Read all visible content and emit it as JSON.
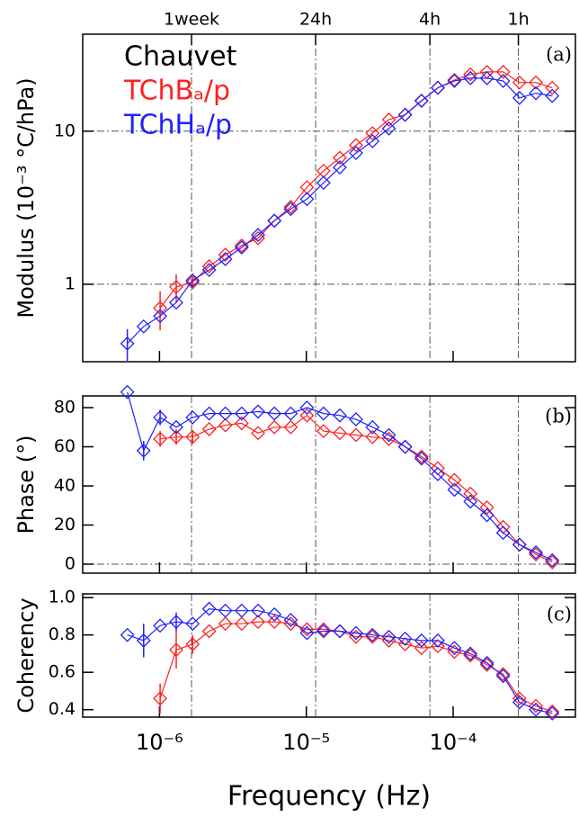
{
  "chart_data": [
    {
      "type": "line",
      "xlog": true,
      "ylog": true,
      "grid": true,
      "ylabel": "Modulus (10⁻³ °C/hPa)",
      "annotation": "(a)",
      "legend_title": "Chauvet",
      "legend": "upper left",
      "xlim": [
        3e-07,
        0.00068
      ],
      "ylim": [
        0.312,
        43
      ],
      "x2ticks": [
        {
          "value": 1.653e-06,
          "label": "1week"
        },
        {
          "value": 1.157e-05,
          "label": "24h"
        },
        {
          "value": 6.94e-05,
          "label": "4h"
        },
        {
          "value": 0.000278,
          "label": "1h"
        }
      ],
      "yticks": [
        1,
        10
      ],
      "ygrid": [
        1,
        10
      ],
      "x": [
        6.04e-07,
        7.8e-07,
        1.01e-06,
        1.3e-06,
        1.68e-06,
        2.18e-06,
        2.81e-06,
        3.63e-06,
        4.69e-06,
        6.06e-06,
        7.83e-06,
        1.01e-05,
        1.31e-05,
        1.69e-05,
        2.18e-05,
        2.82e-05,
        3.65e-05,
        4.71e-05,
        6.09e-05,
        7.86e-05,
        0.000102,
        0.000131,
        0.00017,
        0.000219,
        0.000283,
        0.000366,
        0.000473
      ],
      "series": [
        {
          "name": "TChBₐ/p",
          "color": "#ff2020",
          "values": [
            null,
            null,
            0.7,
            0.96,
            1.03,
            1.31,
            1.56,
            1.79,
            2.0,
            2.6,
            3.2,
            4.3,
            5.5,
            6.7,
            8.1,
            9.7,
            11.9,
            12.8,
            15.8,
            19.2,
            21.6,
            23.5,
            24.4,
            24.4,
            20.8,
            20.8,
            19.2
          ],
          "errors": [
            null,
            null,
            0.2,
            0.2,
            0.08,
            null,
            null,
            null,
            null,
            null,
            null,
            null,
            null,
            null,
            null,
            null,
            null,
            null,
            null,
            null,
            null,
            null,
            null,
            null,
            null,
            null,
            null
          ]
        },
        {
          "name": "TChHₐ/p",
          "color": "#2020ff",
          "values": [
            0.41,
            0.53,
            0.62,
            0.76,
            1.06,
            1.24,
            1.46,
            1.74,
            2.1,
            2.6,
            3.1,
            3.6,
            4.6,
            5.8,
            7.2,
            8.6,
            10.4,
            12.8,
            15.8,
            19.2,
            21.3,
            22.2,
            22.2,
            21.3,
            16.5,
            17.7,
            17.0
          ],
          "errors": [
            0.1,
            null,
            null,
            null,
            null,
            null,
            null,
            null,
            null,
            null,
            null,
            null,
            null,
            null,
            null,
            null,
            null,
            null,
            null,
            null,
            null,
            null,
            null,
            null,
            null,
            null,
            null
          ]
        }
      ]
    },
    {
      "type": "line",
      "xlog": true,
      "grid": true,
      "ylabel": "Phase (°)",
      "annotation": "(b)",
      "xlim": [
        3e-07,
        0.00068
      ],
      "ylim": [
        -4.6,
        86
      ],
      "yticks": [
        0,
        20,
        40,
        60,
        80
      ],
      "ygrid": [
        0
      ],
      "x": [
        6.04e-07,
        7.8e-07,
        1.01e-06,
        1.3e-06,
        1.68e-06,
        2.18e-06,
        2.81e-06,
        3.63e-06,
        4.69e-06,
        6.06e-06,
        7.83e-06,
        1.01e-05,
        1.31e-05,
        1.69e-05,
        2.18e-05,
        2.82e-05,
        3.65e-05,
        4.71e-05,
        6.09e-05,
        7.86e-05,
        0.000102,
        0.000131,
        0.00017,
        0.000219,
        0.000283,
        0.000366,
        0.000473
      ],
      "series": [
        {
          "color": "#ff2020",
          "values": [
            null,
            null,
            64,
            65,
            65,
            69,
            71,
            72,
            67,
            70,
            70,
            76,
            68,
            67,
            66,
            65,
            64,
            60,
            55,
            49,
            43,
            36,
            29,
            19,
            10,
            5,
            1
          ],
          "errors": [
            null,
            null,
            4,
            4,
            3,
            null,
            null,
            null,
            null,
            null,
            null,
            null,
            null,
            null,
            null,
            null,
            null,
            null,
            null,
            null,
            null,
            null,
            null,
            null,
            null,
            null,
            null
          ]
        },
        {
          "color": "#2020ff",
          "values": [
            88,
            58,
            75,
            70,
            75,
            77,
            77,
            77,
            78,
            77,
            77,
            80,
            77,
            76,
            74,
            70,
            66,
            60,
            54,
            46,
            38,
            32,
            25,
            16,
            10,
            6,
            2
          ],
          "errors": [
            null,
            5,
            4,
            null,
            null,
            null,
            null,
            null,
            null,
            null,
            null,
            null,
            null,
            null,
            null,
            null,
            null,
            null,
            null,
            null,
            null,
            null,
            null,
            null,
            null,
            null,
            null
          ]
        }
      ]
    },
    {
      "type": "line",
      "xlog": true,
      "grid": true,
      "ylabel": "Coherency",
      "annotation": "(c)",
      "xlabel": "Frequency (Hz)",
      "xlim": [
        3e-07,
        0.00068
      ],
      "ylim": [
        0.36,
        1.02
      ],
      "xticks": [
        {
          "value": 1e-06,
          "label": "10⁻⁶"
        },
        {
          "value": 1e-05,
          "label": "10⁻⁵"
        },
        {
          "value": 0.0001,
          "label": "10⁻⁴"
        }
      ],
      "yticks": [
        0.4,
        0.6,
        0.8,
        {
          "value": 1.0,
          "label": "1.0"
        }
      ],
      "x": [
        6.04e-07,
        7.8e-07,
        1.01e-06,
        1.3e-06,
        1.68e-06,
        2.18e-06,
        2.81e-06,
        3.63e-06,
        4.69e-06,
        6.06e-06,
        7.83e-06,
        1.01e-05,
        1.31e-05,
        1.69e-05,
        2.18e-05,
        2.82e-05,
        3.65e-05,
        4.71e-05,
        6.09e-05,
        7.86e-05,
        0.000102,
        0.000131,
        0.00017,
        0.000219,
        0.000283,
        0.000366,
        0.000473
      ],
      "series": [
        {
          "color": "#ff2020",
          "values": [
            null,
            null,
            0.46,
            0.72,
            0.75,
            0.82,
            0.86,
            0.86,
            0.87,
            0.87,
            0.86,
            0.83,
            0.83,
            0.82,
            0.79,
            0.79,
            0.77,
            0.75,
            0.73,
            0.74,
            0.71,
            0.69,
            0.64,
            0.59,
            0.46,
            0.42,
            0.39
          ],
          "errors": [
            null,
            null,
            0.08,
            0.1,
            0.05,
            null,
            null,
            null,
            null,
            null,
            null,
            null,
            null,
            null,
            null,
            null,
            null,
            null,
            null,
            null,
            null,
            null,
            null,
            null,
            null,
            null,
            null
          ]
        },
        {
          "color": "#2020ff",
          "values": [
            0.8,
            0.77,
            0.85,
            0.87,
            0.86,
            0.94,
            0.93,
            0.93,
            0.93,
            0.91,
            0.88,
            0.81,
            0.82,
            0.82,
            0.81,
            0.8,
            0.79,
            0.78,
            0.77,
            0.77,
            0.73,
            0.7,
            0.65,
            0.58,
            0.44,
            0.4,
            0.38
          ],
          "errors": [
            null,
            0.09,
            null,
            0.05,
            null,
            null,
            null,
            null,
            null,
            null,
            null,
            null,
            null,
            null,
            null,
            null,
            null,
            null,
            null,
            null,
            null,
            null,
            null,
            null,
            null,
            null,
            null
          ]
        }
      ]
    }
  ]
}
